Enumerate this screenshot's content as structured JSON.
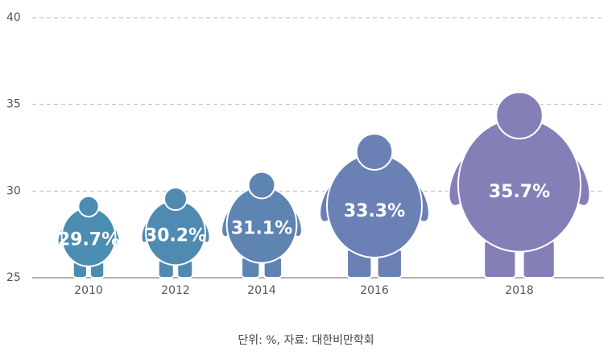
{
  "chart_data": {
    "type": "pictogram",
    "categories": [
      "2010",
      "2012",
      "2014",
      "2016",
      "2018"
    ],
    "values": [
      29.7,
      30.2,
      31.1,
      33.3,
      35.7
    ],
    "value_labels": [
      "29.7%",
      "30.2%",
      "31.1%",
      "33.3%",
      "35.7%"
    ],
    "colors": [
      "#4a8db0",
      "#518ab1",
      "#5e84b1",
      "#6b80b4",
      "#857fb8"
    ],
    "ylim": [
      25,
      40
    ],
    "yticks": [
      25,
      30,
      35,
      40
    ],
    "grid": true,
    "note": "단위: %, 자료: 대한비만학회"
  }
}
